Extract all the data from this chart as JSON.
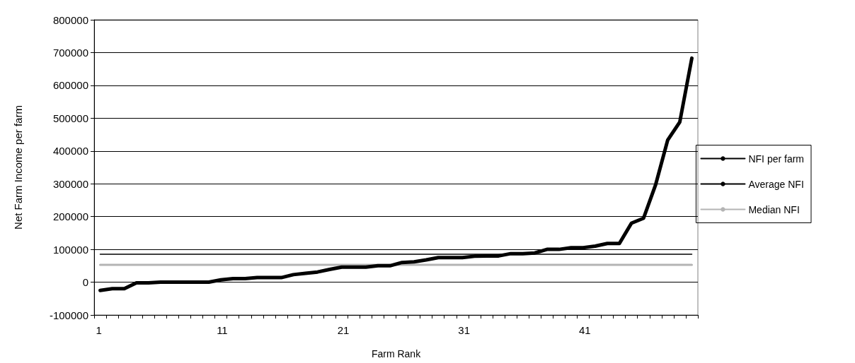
{
  "chart_data": {
    "type": "line",
    "xlabel": "Farm Rank",
    "ylabel": "Net Farm Income per farm",
    "categories": [
      "1",
      null,
      null,
      null,
      null,
      null,
      null,
      null,
      null,
      null,
      "11",
      null,
      null,
      null,
      null,
      null,
      null,
      null,
      null,
      null,
      "21",
      null,
      null,
      null,
      null,
      null,
      null,
      null,
      null,
      null,
      "31",
      null,
      null,
      null,
      null,
      null,
      null,
      null,
      null,
      null,
      "41",
      null,
      null,
      null,
      null,
      null,
      null,
      null,
      null,
      null
    ],
    "series": [
      {
        "name": "NFI per farm",
        "color": "#000000",
        "values": [
          -25000,
          -20000,
          -20000,
          -2000,
          -2000,
          0,
          0,
          0,
          0,
          0,
          7000,
          11000,
          11000,
          14000,
          14000,
          14000,
          23000,
          27000,
          31000,
          39000,
          46000,
          46000,
          46000,
          50000,
          50000,
          60000,
          62000,
          68000,
          75000,
          75000,
          75000,
          79000,
          80000,
          80000,
          87000,
          87000,
          89000,
          100000,
          100000,
          105000,
          105000,
          110000,
          118000,
          118000,
          180000,
          195000,
          297000,
          433000,
          488000,
          683000
        ]
      },
      {
        "name": "Average NFI",
        "color": "#000000",
        "values": [
          85000,
          85000,
          85000,
          85000,
          85000,
          85000,
          85000,
          85000,
          85000,
          85000,
          85000,
          85000,
          85000,
          85000,
          85000,
          85000,
          85000,
          85000,
          85000,
          85000,
          85000,
          85000,
          85000,
          85000,
          85000,
          85000,
          85000,
          85000,
          85000,
          85000,
          85000,
          85000,
          85000,
          85000,
          85000,
          85000,
          85000,
          85000,
          85000,
          85000,
          85000,
          85000,
          85000,
          85000,
          85000,
          85000,
          85000,
          85000,
          85000,
          85000
        ]
      },
      {
        "name": "Median NFI",
        "color": "#b4b4b4",
        "values": [
          53000,
          53000,
          53000,
          53000,
          53000,
          53000,
          53000,
          53000,
          53000,
          53000,
          53000,
          53000,
          53000,
          53000,
          53000,
          53000,
          53000,
          53000,
          53000,
          53000,
          53000,
          53000,
          53000,
          53000,
          53000,
          53000,
          53000,
          53000,
          53000,
          53000,
          53000,
          53000,
          53000,
          53000,
          53000,
          53000,
          53000,
          53000,
          53000,
          53000,
          53000,
          53000,
          53000,
          53000,
          53000,
          53000,
          53000,
          53000,
          53000,
          53000
        ]
      }
    ],
    "ylim": [
      -100000,
      800000
    ],
    "yticks": [
      -100000,
      0,
      100000,
      200000,
      300000,
      400000,
      500000,
      600000,
      700000,
      800000
    ],
    "grid": "y",
    "legend": "right",
    "marker": "none"
  }
}
